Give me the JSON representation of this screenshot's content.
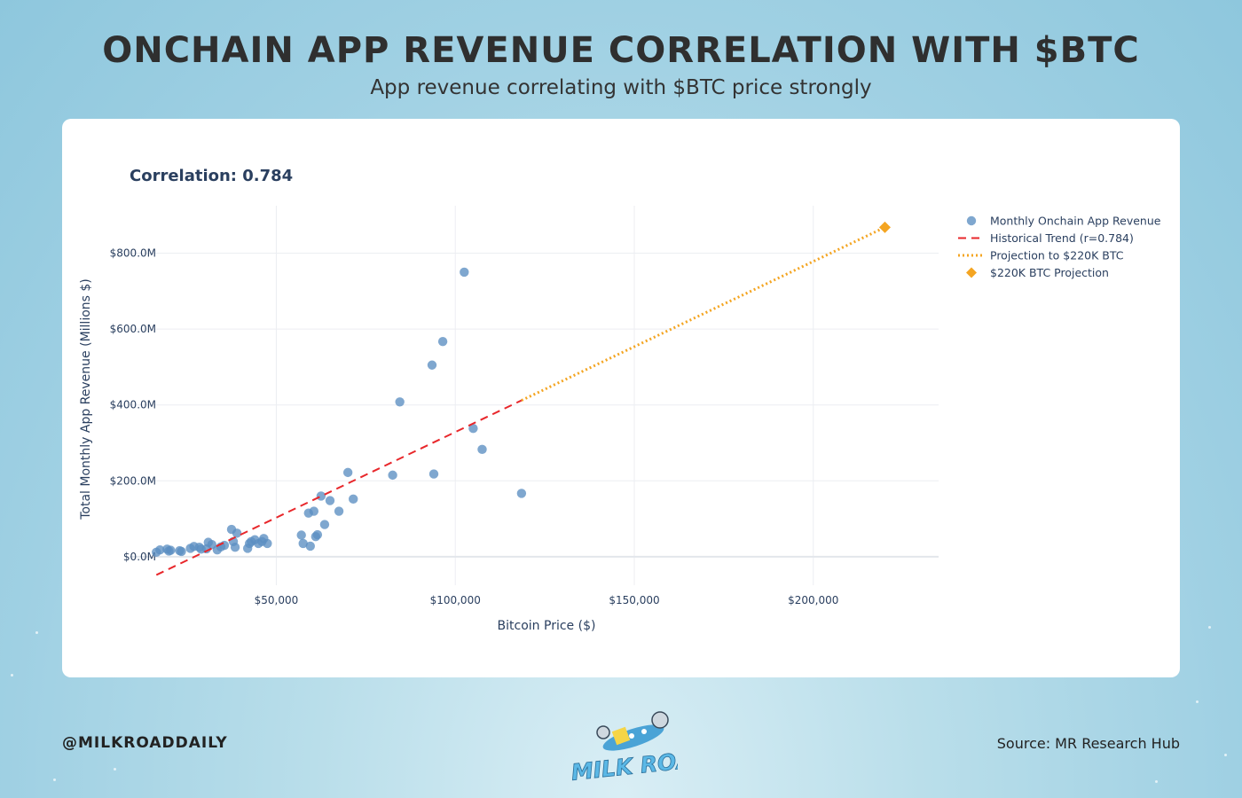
{
  "header": {
    "title": "ONCHAIN APP REVENUE CORRELATION WITH $BTC",
    "subtitle": "App revenue correlating with $BTC price strongly"
  },
  "footer": {
    "handle": "@MILKROADDAILY",
    "source": "Source: MR Research Hub",
    "logo_text": "MILK ROAD"
  },
  "colors": {
    "points": "#5b8ec1",
    "trend": "#e8272b",
    "projection": "#f4a522",
    "grid": "#eceef2",
    "text": "#2a3f5f"
  },
  "chart_data": {
    "type": "scatter",
    "title": "Correlation: 0.784",
    "xlabel": "Bitcoin Price ($)",
    "ylabel": "Total Monthly App Revenue (Millions $)",
    "xlim": [
      9000,
      235000
    ],
    "ylim": [
      -75,
      925
    ],
    "xticks": [
      {
        "value": 50000,
        "label": "$50,000"
      },
      {
        "value": 100000,
        "label": "$100,000"
      },
      {
        "value": 150000,
        "label": "$150,000"
      },
      {
        "value": 200000,
        "label": "$200,000"
      }
    ],
    "yticks": [
      {
        "value": 0,
        "label": "$0.0M"
      },
      {
        "value": 200,
        "label": "$200.0M"
      },
      {
        "value": 400,
        "label": "$400.0M"
      },
      {
        "value": 600,
        "label": "$600.0M"
      },
      {
        "value": 800,
        "label": "$800.0M"
      }
    ],
    "grid": true,
    "legend_position": "top-right",
    "series": [
      {
        "name": "Monthly Onchain App Revenue",
        "kind": "markers",
        "x": [
          16500,
          17500,
          19500,
          20000,
          20500,
          23000,
          23500,
          26000,
          27000,
          28500,
          29000,
          30500,
          31000,
          32000,
          33500,
          34500,
          35500,
          37500,
          38000,
          38500,
          39000,
          42000,
          42500,
          43000,
          44000,
          45000,
          46000,
          46500,
          47500,
          57000,
          57500,
          59000,
          59500,
          60500,
          61000,
          61500,
          62500,
          63500,
          65000,
          67500,
          70000,
          71500,
          82500,
          84500,
          93500,
          94000,
          96500,
          102500,
          105000,
          107500,
          118500
        ],
        "y": [
          12,
          18,
          20,
          15,
          17,
          16,
          14,
          22,
          27,
          25,
          20,
          21,
          38,
          32,
          18,
          26,
          30,
          72,
          40,
          25,
          62,
          22,
          35,
          40,
          45,
          35,
          40,
          48,
          35,
          57,
          35,
          115,
          28,
          120,
          53,
          58,
          160,
          85,
          148,
          120,
          222,
          152,
          215,
          408,
          505,
          218,
          567,
          750,
          338,
          283,
          167
        ]
      },
      {
        "name": "Historical Trend (r=0.784)",
        "kind": "dashed-line",
        "x": [
          16500,
          118500
        ],
        "y": [
          -48,
          412
        ]
      },
      {
        "name": "Projection to $220K BTC",
        "kind": "dotted-line",
        "x": [
          118500,
          220000
        ],
        "y": [
          412,
          868
        ]
      },
      {
        "name": "$220K BTC Projection",
        "kind": "diamond-marker",
        "x": [
          220000
        ],
        "y": [
          868
        ]
      }
    ]
  }
}
